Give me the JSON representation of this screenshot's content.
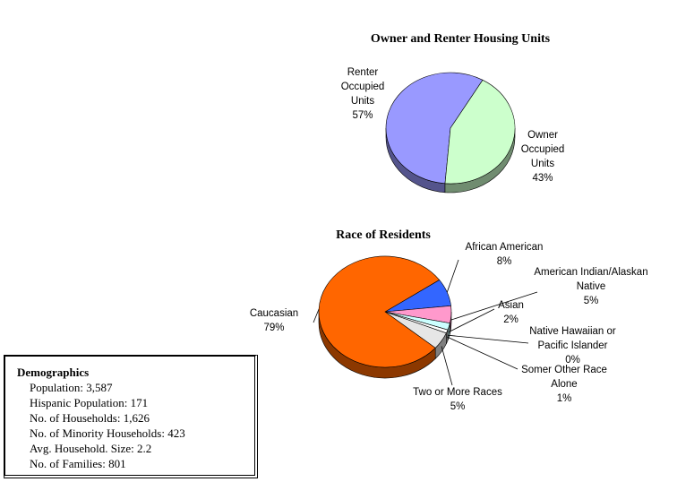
{
  "chart_data": [
    {
      "type": "pie",
      "title": "Owner and Renter Housing Units",
      "categories": [
        "Renter Occupied Units",
        "Owner Occupied Units"
      ],
      "values": [
        57,
        43
      ],
      "value_labels": [
        "57%",
        "43%"
      ],
      "colors": [
        "#9999ff",
        "#ccffcc"
      ]
    },
    {
      "type": "pie",
      "title": "Race of Residents",
      "categories": [
        "African American",
        "American Indian/Alaskan Native",
        "Asian",
        "Native Hawaiian or Pacific Islander",
        "Somer Other Race Alone",
        "Two or More Races",
        "Caucasian"
      ],
      "values": [
        8,
        5,
        2,
        0,
        1,
        5,
        79
      ],
      "value_labels": [
        "8%",
        "5%",
        "2%",
        "0%",
        "1%",
        "5%",
        "79%"
      ],
      "colors": [
        "#3366ff",
        "#ff99cc",
        "#ccffff",
        "#ffffcc",
        "#ffffff",
        "#e6e6e6",
        "#ff6600"
      ]
    }
  ],
  "demographics": {
    "title": "Demographics",
    "items": [
      "Population: 3,587",
      "Hispanic Population: 171",
      "No. of Households: 1,626",
      "No. of Minority Households: 423",
      "Avg. Household. Size: 2.2",
      "No. of Families: 801"
    ]
  }
}
